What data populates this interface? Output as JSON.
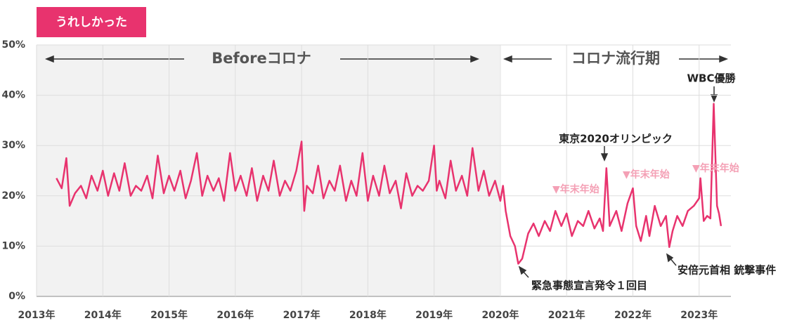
{
  "chart_data": {
    "type": "line",
    "x": [
      2013.3,
      2013.38,
      2013.45,
      2013.5,
      2013.58,
      2013.67,
      2013.75,
      2013.83,
      2013.92,
      2014.0,
      2014.08,
      2014.17,
      2014.25,
      2014.33,
      2014.42,
      2014.5,
      2014.58,
      2014.67,
      2014.75,
      2014.83,
      2014.92,
      2015.0,
      2015.08,
      2015.17,
      2015.25,
      2015.33,
      2015.42,
      2015.5,
      2015.58,
      2015.67,
      2015.75,
      2015.83,
      2015.92,
      2016.0,
      2016.08,
      2016.17,
      2016.25,
      2016.33,
      2016.42,
      2016.5,
      2016.58,
      2016.67,
      2016.75,
      2016.83,
      2016.92,
      2017.0,
      2017.04,
      2017.08,
      2017.17,
      2017.25,
      2017.33,
      2017.42,
      2017.5,
      2017.58,
      2017.67,
      2017.75,
      2017.83,
      2017.92,
      2018.0,
      2018.08,
      2018.17,
      2018.25,
      2018.33,
      2018.42,
      2018.5,
      2018.58,
      2018.67,
      2018.75,
      2018.83,
      2018.92,
      2019.0,
      2019.04,
      2019.08,
      2019.17,
      2019.25,
      2019.33,
      2019.42,
      2019.5,
      2019.58,
      2019.67,
      2019.75,
      2019.83,
      2019.92,
      2020.0,
      2020.04,
      2020.08,
      2020.15,
      2020.22,
      2020.27,
      2020.33,
      2020.42,
      2020.5,
      2020.58,
      2020.67,
      2020.75,
      2020.83,
      2020.92,
      2021.0,
      2021.08,
      2021.17,
      2021.25,
      2021.33,
      2021.42,
      2021.5,
      2021.55,
      2021.6,
      2021.65,
      2021.75,
      2021.83,
      2021.92,
      2022.0,
      2022.05,
      2022.12,
      2022.2,
      2022.25,
      2022.33,
      2022.42,
      2022.5,
      2022.55,
      2022.6,
      2022.67,
      2022.75,
      2022.83,
      2022.92,
      2023.0,
      2023.02,
      2023.07,
      2023.12,
      2023.17,
      2023.22,
      2023.27,
      2023.3,
      2023.33
    ],
    "series": [
      {
        "name": "うれしかった",
        "color": "#e8336e",
        "values": [
          23.5,
          21.5,
          27.5,
          18,
          20.5,
          22,
          19.5,
          24,
          21,
          25,
          20,
          24.5,
          21,
          26.5,
          20,
          22,
          21,
          24,
          19.5,
          28,
          20.5,
          24,
          21,
          25,
          19.5,
          23,
          28.5,
          20,
          24,
          21,
          23.5,
          19,
          28.5,
          21,
          24,
          20,
          25.5,
          19,
          24,
          21,
          27,
          20,
          23,
          21,
          25,
          30.8,
          17,
          22,
          20.5,
          26,
          19.5,
          23,
          21,
          26,
          19,
          23,
          20,
          28.5,
          19,
          24,
          20,
          26,
          20.5,
          23,
          17.5,
          24.5,
          20,
          22,
          21,
          23,
          30,
          21,
          23,
          19.5,
          27,
          21,
          24,
          20,
          29.5,
          21,
          25,
          20,
          23,
          19,
          22,
          17,
          12,
          10,
          6.5,
          7.5,
          12.5,
          14.5,
          12,
          15,
          13,
          17,
          14,
          16.5,
          12,
          15,
          14,
          17,
          13.5,
          15.5,
          13,
          25.5,
          14,
          17,
          13,
          18.5,
          21.5,
          14,
          11,
          16,
          12,
          18,
          14,
          16,
          9.8,
          13,
          16,
          14,
          17,
          18,
          19.5,
          23.5,
          15,
          16,
          15.5,
          38.3,
          18,
          16.5,
          14
        ]
      }
    ],
    "xlim": [
      2013,
      2023.48
    ],
    "ylim": [
      0,
      50
    ],
    "xticks": [
      {
        "value": 2013,
        "label": "2013年"
      },
      {
        "value": 2014,
        "label": "2014年"
      },
      {
        "value": 2015,
        "label": "2015年"
      },
      {
        "value": 2016,
        "label": "2016年"
      },
      {
        "value": 2017,
        "label": "2017年"
      },
      {
        "value": 2018,
        "label": "2018年"
      },
      {
        "value": 2019,
        "label": "2019年"
      },
      {
        "value": 2020,
        "label": "2020年"
      },
      {
        "value": 2021,
        "label": "2021年"
      },
      {
        "value": 2022,
        "label": "2022年"
      },
      {
        "value": 2023,
        "label": "2023年"
      }
    ],
    "yticks": [
      {
        "value": 0,
        "label": "0%"
      },
      {
        "value": 10,
        "label": "10%"
      },
      {
        "value": 20,
        "label": "20%"
      },
      {
        "value": 30,
        "label": "30%"
      },
      {
        "value": 40,
        "label": "40%"
      },
      {
        "value": 50,
        "label": "50%"
      }
    ],
    "grid": true,
    "annotations": [
      "Beforeコロナ",
      "コロナ流行期",
      "WBC優勝",
      "東京2020オリンピック",
      "▼年末年始",
      "▼年末年始",
      "▼年末年始",
      "緊急事態宣言発令１回目",
      "安倍元首相 銃撃事件"
    ]
  }
}
